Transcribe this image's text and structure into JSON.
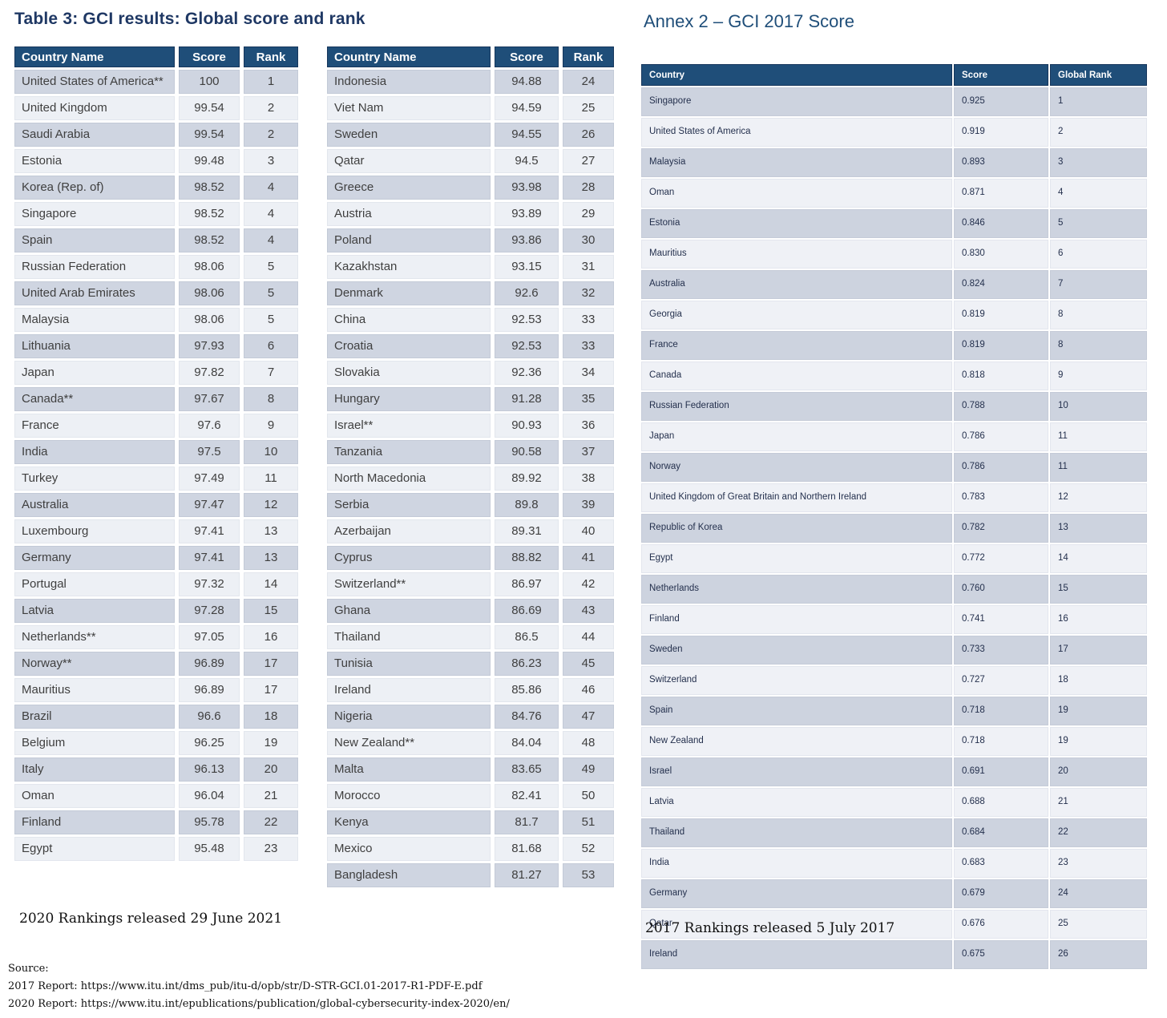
{
  "titles": {
    "table3": "Table 3: GCI results: Global score and rank",
    "annex2": "Annex 2 – GCI 2017 Score"
  },
  "colors": {
    "header_blue": "#1F4E79",
    "header_border": "#16365C",
    "title_navy": "#1F3864",
    "annex_title_blue": "#1F4E79",
    "row_dark": "#CFD5E1",
    "row_light": "#EDF0F5",
    "annex_row_dark": "#CDD3DF",
    "annex_row_light": "#EFF1F6",
    "cell_text": "#3F3F3F",
    "annex_text": "#24304D"
  },
  "gci2020": {
    "headers": [
      "Country Name",
      "Score",
      "Rank"
    ],
    "left_rows": [
      [
        "United States of America**",
        "100",
        "1"
      ],
      [
        "United Kingdom",
        "99.54",
        "2"
      ],
      [
        "Saudi Arabia",
        "99.54",
        "2"
      ],
      [
        "Estonia",
        "99.48",
        "3"
      ],
      [
        "Korea (Rep. of)",
        "98.52",
        "4"
      ],
      [
        "Singapore",
        "98.52",
        "4"
      ],
      [
        "Spain",
        "98.52",
        "4"
      ],
      [
        "Russian Federation",
        "98.06",
        "5"
      ],
      [
        "United Arab Emirates",
        "98.06",
        "5"
      ],
      [
        "Malaysia",
        "98.06",
        "5"
      ],
      [
        "Lithuania",
        "97.93",
        "6"
      ],
      [
        "Japan",
        "97.82",
        "7"
      ],
      [
        "Canada**",
        "97.67",
        "8"
      ],
      [
        "France",
        "97.6",
        "9"
      ],
      [
        "India",
        "97.5",
        "10"
      ],
      [
        "Turkey",
        "97.49",
        "11"
      ],
      [
        "Australia",
        "97.47",
        "12"
      ],
      [
        "Luxembourg",
        "97.41",
        "13"
      ],
      [
        "Germany",
        "97.41",
        "13"
      ],
      [
        "Portugal",
        "97.32",
        "14"
      ],
      [
        "Latvia",
        "97.28",
        "15"
      ],
      [
        "Netherlands**",
        "97.05",
        "16"
      ],
      [
        "Norway**",
        "96.89",
        "17"
      ],
      [
        "Mauritius",
        "96.89",
        "17"
      ],
      [
        "Brazil",
        "96.6",
        "18"
      ],
      [
        "Belgium",
        "96.25",
        "19"
      ],
      [
        "Italy",
        "96.13",
        "20"
      ],
      [
        "Oman",
        "96.04",
        "21"
      ],
      [
        "Finland",
        "95.78",
        "22"
      ],
      [
        "Egypt",
        "95.48",
        "23"
      ]
    ],
    "right_rows": [
      [
        "Indonesia",
        "94.88",
        "24"
      ],
      [
        "Viet Nam",
        "94.59",
        "25"
      ],
      [
        "Sweden",
        "94.55",
        "26"
      ],
      [
        "Qatar",
        "94.5",
        "27"
      ],
      [
        "Greece",
        "93.98",
        "28"
      ],
      [
        "Austria",
        "93.89",
        "29"
      ],
      [
        "Poland",
        "93.86",
        "30"
      ],
      [
        "Kazakhstan",
        "93.15",
        "31"
      ],
      [
        "Denmark",
        "92.6",
        "32"
      ],
      [
        "China",
        "92.53",
        "33"
      ],
      [
        "Croatia",
        "92.53",
        "33"
      ],
      [
        "Slovakia",
        "92.36",
        "34"
      ],
      [
        "Hungary",
        "91.28",
        "35"
      ],
      [
        "Israel**",
        "90.93",
        "36"
      ],
      [
        "Tanzania",
        "90.58",
        "37"
      ],
      [
        "North Macedonia",
        "89.92",
        "38"
      ],
      [
        "Serbia",
        "89.8",
        "39"
      ],
      [
        "Azerbaijan",
        "89.31",
        "40"
      ],
      [
        "Cyprus",
        "88.82",
        "41"
      ],
      [
        "Switzerland**",
        "86.97",
        "42"
      ],
      [
        "Ghana",
        "86.69",
        "43"
      ],
      [
        "Thailand",
        "86.5",
        "44"
      ],
      [
        "Tunisia",
        "86.23",
        "45"
      ],
      [
        "Ireland",
        "85.86",
        "46"
      ],
      [
        "Nigeria",
        "84.76",
        "47"
      ],
      [
        "New Zealand**",
        "84.04",
        "48"
      ],
      [
        "Malta",
        "83.65",
        "49"
      ],
      [
        "Morocco",
        "82.41",
        "50"
      ],
      [
        "Kenya",
        "81.7",
        "51"
      ],
      [
        "Mexico",
        "81.68",
        "52"
      ],
      [
        "Bangladesh",
        "81.27",
        "53"
      ]
    ]
  },
  "gci2017": {
    "headers": [
      "Country",
      "Score",
      "Global Rank"
    ],
    "rows": [
      [
        "Singapore",
        "0.925",
        "1"
      ],
      [
        "United States of America",
        "0.919",
        "2"
      ],
      [
        "Malaysia",
        "0.893",
        "3"
      ],
      [
        "Oman",
        "0.871",
        "4"
      ],
      [
        "Estonia",
        "0.846",
        "5"
      ],
      [
        "Mauritius",
        "0.830",
        "6"
      ],
      [
        "Australia",
        "0.824",
        "7"
      ],
      [
        "Georgia",
        "0.819",
        "8"
      ],
      [
        "France",
        "0.819",
        "8"
      ],
      [
        "Canada",
        "0.818",
        "9"
      ],
      [
        "Russian Federation",
        "0.788",
        "10"
      ],
      [
        "Japan",
        "0.786",
        "11"
      ],
      [
        "Norway",
        "0.786",
        "11"
      ],
      [
        "United Kingdom of Great Britain and Northern Ireland",
        "0.783",
        "12"
      ],
      [
        "Republic of Korea",
        "0.782",
        "13"
      ],
      [
        "Egypt",
        "0.772",
        "14"
      ],
      [
        "Netherlands",
        "0.760",
        "15"
      ],
      [
        "Finland",
        "0.741",
        "16"
      ],
      [
        "Sweden",
        "0.733",
        "17"
      ],
      [
        "Switzerland",
        "0.727",
        "18"
      ],
      [
        "Spain",
        "0.718",
        "19"
      ],
      [
        "New Zealand",
        "0.718",
        "19"
      ],
      [
        "Israel",
        "0.691",
        "20"
      ],
      [
        "Latvia",
        "0.688",
        "21"
      ],
      [
        "Thailand",
        "0.684",
        "22"
      ],
      [
        "India",
        "0.683",
        "23"
      ],
      [
        "Germany",
        "0.679",
        "24"
      ],
      [
        "Qatar",
        "0.676",
        "25"
      ],
      [
        "Ireland",
        "0.675",
        "26"
      ]
    ]
  },
  "notes": {
    "released_2020": "2020 Rankings released 29 June 2021",
    "released_2017": "2017 Rankings released 5 July 2017",
    "source_label": "Source:",
    "source_2017": "2017 Report: https://www.itu.int/dms_pub/itu-d/opb/str/D-STR-GCI.01-2017-R1-PDF-E.pdf",
    "source_2020": "2020 Report: https://www.itu.int/epublications/publication/global-cybersecurity-index-2020/en/"
  }
}
